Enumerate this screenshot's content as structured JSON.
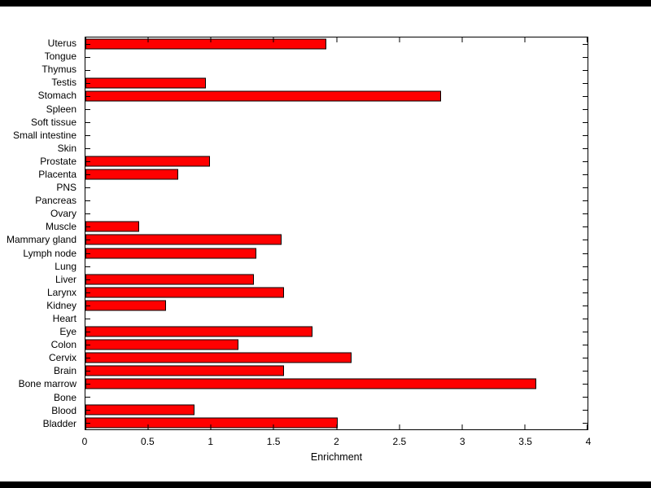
{
  "window": {
    "chrome_color": "#000000",
    "background_color": "#ffffff"
  },
  "chart_data": {
    "type": "bar",
    "orientation": "horizontal",
    "title": "",
    "xlabel": "Enrichment",
    "ylabel": "",
    "xlim": [
      0,
      4
    ],
    "x_ticks": [
      0,
      0.5,
      1,
      1.5,
      2,
      2.5,
      3,
      3.5,
      4
    ],
    "x_tick_labels": [
      "0",
      "0.5",
      "1",
      "1.5",
      "2",
      "2.5",
      "3",
      "3.5",
      "4"
    ],
    "grid": false,
    "legend": false,
    "bar_color": "#FF0000",
    "bar_edge_color": "#000000",
    "categories_top_to_bottom": [
      "Uterus",
      "Tongue",
      "Thymus",
      "Testis",
      "Stomach",
      "Spleen",
      "Soft tissue",
      "Small intestine",
      "Skin",
      "Prostate",
      "Placenta",
      "PNS",
      "Pancreas",
      "Ovary",
      "Muscle",
      "Mammary gland",
      "Lymph node",
      "Lung",
      "Liver",
      "Larynx",
      "Kidney",
      "Heart",
      "Eye",
      "Colon",
      "Cervix",
      "Brain",
      "Bone marrow",
      "Bone",
      "Blood",
      "Bladder"
    ],
    "values": [
      1.92,
      0,
      0,
      0.96,
      2.83,
      0,
      0,
      0,
      0,
      0.99,
      0.74,
      0,
      0,
      0,
      0.43,
      1.56,
      1.36,
      0,
      1.34,
      1.58,
      0.64,
      0,
      1.81,
      1.22,
      2.12,
      1.58,
      3.59,
      0,
      0.87,
      2.01
    ]
  }
}
